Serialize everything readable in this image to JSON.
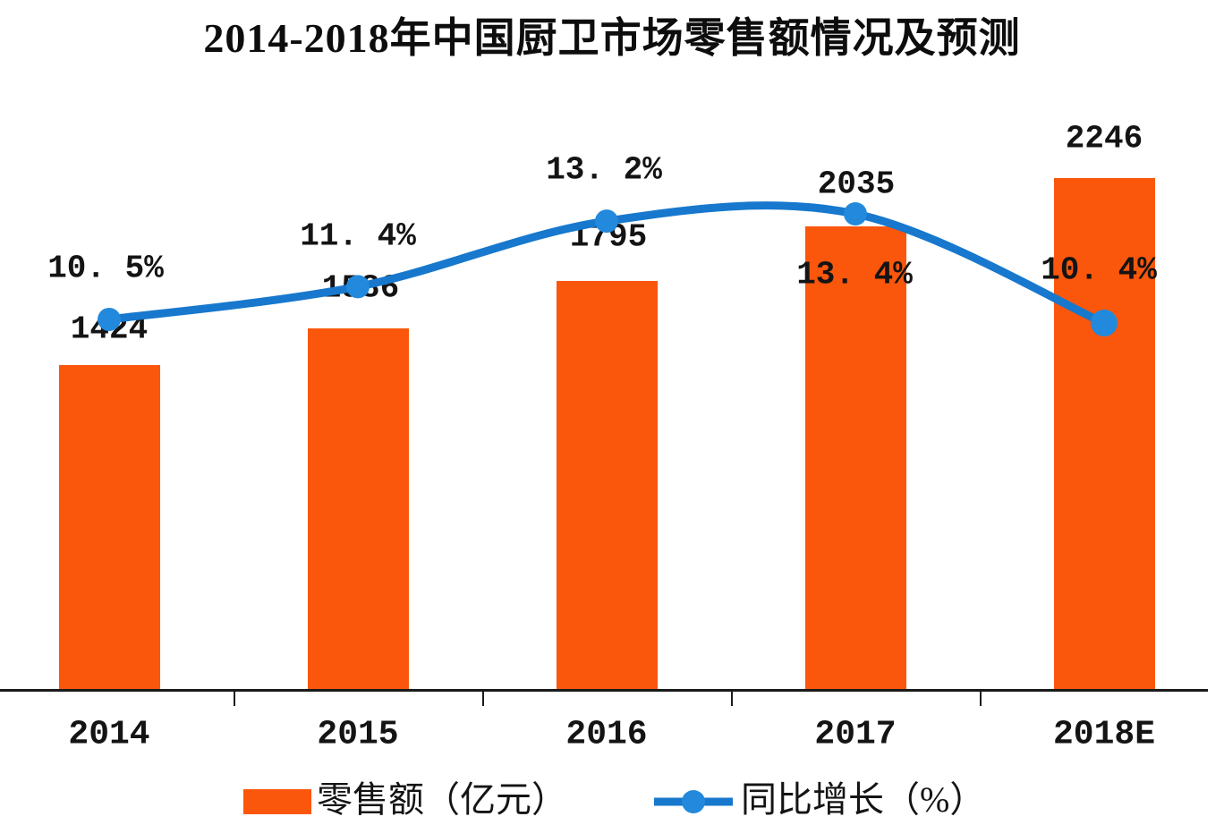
{
  "title": "2014-2018年中国厨卫市场零售额情况及预测",
  "colors": {
    "bar": "#FA570C",
    "line": "#1778CD",
    "marker": "#2389DC",
    "text": "#141414",
    "axis": "#1A1A1A",
    "background": "#FFFFFF"
  },
  "chart_data": {
    "type": "bar",
    "subtype": "bar+line combo",
    "title": "2014-2018年中国厨卫市场零售额情况及预测",
    "categories": [
      "2014",
      "2015",
      "2016",
      "2017",
      "2018E"
    ],
    "series": [
      {
        "name": "零售额（亿元）",
        "type": "bar",
        "color": "#FA570C",
        "values": [
          1424,
          1586,
          1795,
          2035,
          2246
        ],
        "labels": [
          "1424",
          "1586",
          "1795",
          "2035",
          "2246"
        ]
      },
      {
        "name": "同比增长（%）",
        "type": "line",
        "color": "#1778CD",
        "values": [
          10.5,
          11.4,
          13.2,
          13.4,
          10.4
        ],
        "labels": [
          "10. 5%",
          "11. 4%",
          "13. 2%",
          "13. 4%",
          "10. 4%"
        ]
      }
    ],
    "xlabel": "",
    "ylabel": "",
    "grid": false,
    "axes_visible": {
      "x": true,
      "y": false
    },
    "legend_position": "bottom"
  },
  "legend": {
    "bar_label": "零售额（亿元）",
    "line_label": "同比增长（%）"
  }
}
